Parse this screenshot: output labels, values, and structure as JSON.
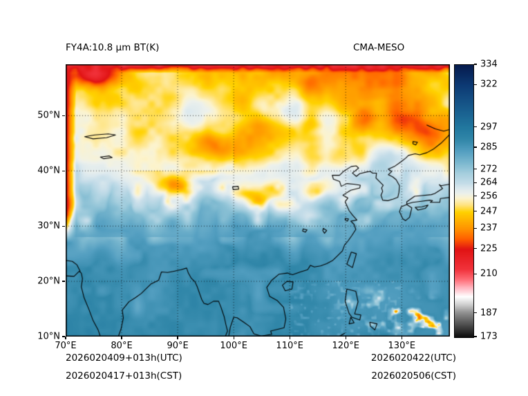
{
  "figure": {
    "title_left": "FY4A:10.8 μm BT(K)",
    "title_right": "CMA-MESO",
    "footer": {
      "left_line1": "2026020409+013h(UTC)",
      "left_line2": "2026020417+013h(CST)",
      "right_line1": "2026020422(UTC)",
      "right_line2": "2026020506(CST)"
    }
  },
  "chart_data": {
    "type": "heatmap",
    "title": "FY4A:10.8 μm BT(K)",
    "model_label": "CMA-MESO",
    "variable": "10.8 μm brightness temperature (K)",
    "lon_range": [
      70,
      138.6
    ],
    "lat_range": [
      10,
      59.3
    ],
    "x_tick_lons": [
      70,
      80,
      90,
      100,
      110,
      120,
      130
    ],
    "x_tick_labels": [
      "70°E",
      "80°E",
      "90°E",
      "100°E",
      "110°E",
      "120°E",
      "130°E"
    ],
    "y_tick_lats": [
      10,
      20,
      30,
      40,
      50
    ],
    "y_tick_labels": [
      "10°N",
      "20°N",
      "30°N",
      "40°N",
      "50°N"
    ],
    "grid": "dotted",
    "colorbar": {
      "min": 173,
      "max": 334,
      "tick_values": [
        334,
        322,
        297,
        285,
        272,
        264,
        256,
        247,
        237,
        225,
        210,
        187,
        173
      ],
      "stops": [
        [
          173,
          "#0d0d0d"
        ],
        [
          180,
          "#4b4b4b"
        ],
        [
          187,
          "#8b8b8b"
        ],
        [
          193,
          "#d8d8d8"
        ],
        [
          197,
          "#ffffff"
        ],
        [
          202,
          "#ffb9c3"
        ],
        [
          207,
          "#ff6e78"
        ],
        [
          213,
          "#f2333c"
        ],
        [
          225,
          "#e11414"
        ],
        [
          231,
          "#ff5f00"
        ],
        [
          237,
          "#ff9300"
        ],
        [
          242,
          "#ffb200"
        ],
        [
          247,
          "#ffd200"
        ],
        [
          251,
          "#ffe37d"
        ],
        [
          255,
          "#fcf3cd"
        ],
        [
          258,
          "#edf1ec"
        ],
        [
          261,
          "#dce9ee"
        ],
        [
          264,
          "#c5dde9"
        ],
        [
          270,
          "#a4cede"
        ],
        [
          276,
          "#7db9d0"
        ],
        [
          283,
          "#549fc1"
        ],
        [
          290,
          "#3187a9"
        ],
        [
          297,
          "#22789f"
        ],
        [
          306,
          "#1a6291"
        ],
        [
          314,
          "#144e83"
        ],
        [
          322,
          "#0d3a74"
        ],
        [
          334,
          "#061c4e"
        ]
      ]
    }
  }
}
